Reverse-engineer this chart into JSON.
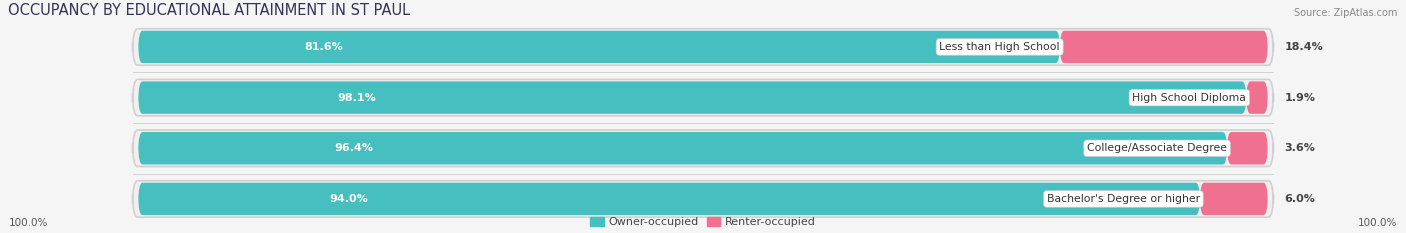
{
  "title": "OCCUPANCY BY EDUCATIONAL ATTAINMENT IN ST PAUL",
  "source": "Source: ZipAtlas.com",
  "categories": [
    "Less than High School",
    "High School Diploma",
    "College/Associate Degree",
    "Bachelor's Degree or higher"
  ],
  "owner_pct": [
    81.6,
    98.1,
    96.4,
    94.0
  ],
  "renter_pct": [
    18.4,
    1.9,
    3.6,
    6.0
  ],
  "owner_color": "#45BFBF",
  "renter_color": "#F07090",
  "row_bg_color": "#e8e8e8",
  "bar_bg_color": "#f8f8f8",
  "fig_bg_color": "#f5f5f5",
  "title_fontsize": 10.5,
  "label_fontsize": 8.0,
  "cat_fontsize": 7.8,
  "source_fontsize": 7.0,
  "axis_label_left": "100.0%",
  "axis_label_right": "100.0%",
  "legend_owner": "Owner-occupied",
  "legend_renter": "Renter-occupied"
}
